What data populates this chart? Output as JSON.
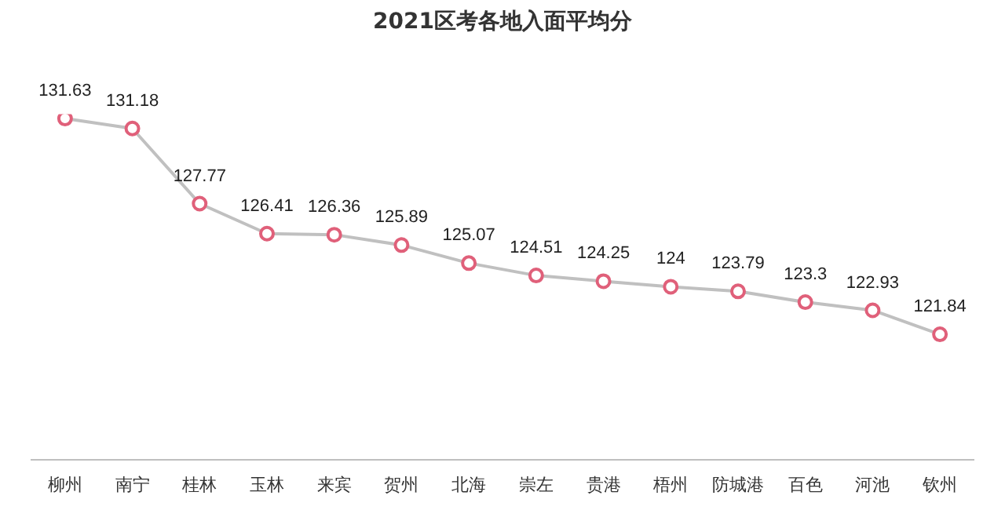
{
  "chart_data": {
    "type": "line",
    "title": "2021区考各地入面平均分",
    "categories": [
      "柳州",
      "南宁",
      "桂林",
      "玉林",
      "来宾",
      "贺州",
      "北海",
      "崇左",
      "贵港",
      "梧州",
      "防城港",
      "百色",
      "河池",
      "钦州"
    ],
    "series": [
      {
        "color": "#c0c0c0",
        "values": [
          131.63,
          131.18,
          127.77,
          126.41,
          126.36,
          125.89,
          125.07,
          124.51,
          124.25,
          124,
          123.79,
          123.3,
          122.93,
          121.84
        ]
      }
    ],
    "data_labels": true,
    "marker": "circle",
    "line_style": "solid",
    "grid": false,
    "legend": false,
    "tick_labels": "x"
  }
}
